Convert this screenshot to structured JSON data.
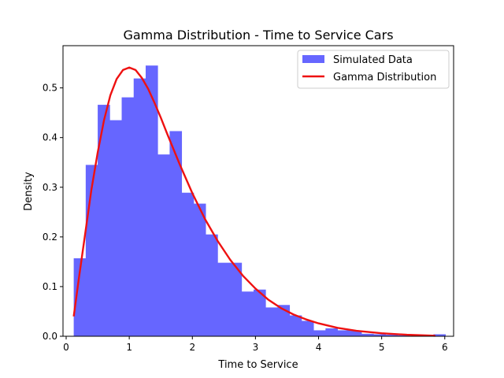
{
  "chart_data": {
    "type": "bar",
    "title": "Gamma Distribution - Time to Service Cars",
    "xlabel": "Time to Service",
    "ylabel": "Density",
    "xlim": [
      -0.05,
      6.14
    ],
    "ylim": [
      0,
      0.585
    ],
    "xticks": [
      0,
      1,
      2,
      3,
      4,
      5,
      6
    ],
    "yticks": [
      0.0,
      0.1,
      0.2,
      0.3,
      0.4,
      0.5
    ],
    "grid": false,
    "legend_position": "top-right",
    "histogram": {
      "name": "Simulated Data",
      "color": "#6666ff",
      "bin_start": 0.12,
      "bin_width": 0.19,
      "values": [
        0.157,
        0.345,
        0.466,
        0.435,
        0.481,
        0.519,
        0.545,
        0.366,
        0.413,
        0.289,
        0.267,
        0.205,
        0.148,
        0.148,
        0.09,
        0.094,
        0.058,
        0.063,
        0.042,
        0.031,
        0.012,
        0.016,
        0.012,
        0.011,
        0.005,
        0.004,
        0.003,
        0.002,
        0.001,
        0.002,
        0.004
      ]
    },
    "curve": {
      "name": "Gamma Distribution",
      "color": "#ee1111",
      "x": [
        0.12,
        0.2,
        0.3,
        0.4,
        0.5,
        0.6,
        0.7,
        0.8,
        0.9,
        1.0,
        1.1,
        1.2,
        1.3,
        1.4,
        1.5,
        1.6,
        1.8,
        2.0,
        2.2,
        2.4,
        2.6,
        2.8,
        3.0,
        3.2,
        3.4,
        3.6,
        3.8,
        4.0,
        4.3,
        4.6,
        5.0,
        5.4,
        5.85
      ],
      "y": [
        0.04,
        0.115,
        0.205,
        0.295,
        0.37,
        0.435,
        0.485,
        0.518,
        0.536,
        0.541,
        0.536,
        0.52,
        0.498,
        0.47,
        0.44,
        0.408,
        0.346,
        0.288,
        0.236,
        0.192,
        0.154,
        0.122,
        0.096,
        0.074,
        0.057,
        0.044,
        0.034,
        0.026,
        0.017,
        0.011,
        0.006,
        0.003,
        0.001
      ]
    }
  }
}
